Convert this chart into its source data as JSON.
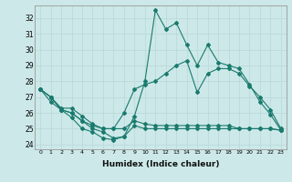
{
  "xlabel": "Humidex (Indice chaleur)",
  "xlim": [
    -0.5,
    23.5
  ],
  "ylim": [
    23.7,
    32.8
  ],
  "yticks": [
    24,
    25,
    26,
    27,
    28,
    29,
    30,
    31,
    32
  ],
  "xticks": [
    0,
    1,
    2,
    3,
    4,
    5,
    6,
    7,
    8,
    9,
    10,
    11,
    12,
    13,
    14,
    15,
    16,
    17,
    18,
    19,
    20,
    21,
    22,
    23
  ],
  "bg_color": "#cce8e8",
  "line_color": "#1a7a6e",
  "grid_color": "#b8d8d8",
  "series": {
    "line1": [
      27.5,
      27.0,
      26.2,
      25.7,
      25.0,
      24.8,
      24.4,
      24.3,
      24.5,
      25.8,
      28.0,
      32.5,
      31.3,
      31.7,
      30.3,
      29.0,
      30.3,
      29.2,
      29.0,
      28.8,
      27.8,
      26.7,
      25.9,
      24.9
    ],
    "line2": [
      27.5,
      27.0,
      26.2,
      26.0,
      25.5,
      25.2,
      25.0,
      25.0,
      26.0,
      27.5,
      27.8,
      28.0,
      28.5,
      29.0,
      29.3,
      27.3,
      28.5,
      28.8,
      28.8,
      28.5,
      27.7,
      27.0,
      26.2,
      25.0
    ],
    "line3": [
      27.5,
      27.0,
      26.3,
      26.3,
      25.8,
      25.3,
      25.0,
      25.0,
      25.0,
      25.5,
      25.3,
      25.2,
      25.2,
      25.2,
      25.2,
      25.2,
      25.2,
      25.2,
      25.2,
      25.0,
      25.0,
      25.0,
      25.0,
      24.9
    ],
    "line4": [
      27.5,
      26.7,
      26.2,
      26.0,
      25.5,
      25.0,
      24.8,
      24.4,
      24.5,
      25.2,
      25.0,
      25.0,
      25.0,
      25.0,
      25.0,
      25.0,
      25.0,
      25.0,
      25.0,
      25.0,
      25.0,
      25.0,
      25.0,
      24.9
    ]
  }
}
